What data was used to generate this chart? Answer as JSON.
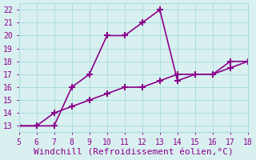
{
  "line1_x": [
    5,
    6,
    7,
    8,
    9,
    10,
    11,
    12,
    13,
    14,
    15,
    16,
    17,
    18
  ],
  "line1_y": [
    13,
    13,
    13,
    16,
    17,
    20,
    20,
    21,
    22,
    16.5,
    17,
    17,
    18,
    18
  ],
  "line2_x": [
    5,
    6,
    7,
    8,
    9,
    10,
    11,
    12,
    13,
    14,
    15,
    16,
    17,
    18
  ],
  "line2_y": [
    13,
    13,
    14,
    14.5,
    15,
    15.5,
    16,
    16,
    16.5,
    17,
    17,
    17,
    17.5,
    18
  ],
  "line_color": "#8B008B",
  "marker": "+",
  "markersize": 6,
  "linewidth": 1.2,
  "xlabel": "Windchill (Refroidissement éolien,°C)",
  "xlabel_color": "#8B008B",
  "xlabel_fontsize": 8,
  "bg_color": "#d9f0f0",
  "grid_color": "#aadddd",
  "xlim": [
    5,
    18
  ],
  "ylim": [
    12.5,
    22.5
  ],
  "xticks": [
    5,
    6,
    7,
    8,
    9,
    10,
    11,
    12,
    13,
    14,
    15,
    16,
    17,
    18
  ],
  "yticks": [
    13,
    14,
    15,
    16,
    17,
    18,
    19,
    20,
    21,
    22
  ],
  "tick_color": "#8B008B",
  "tick_fontsize": 7
}
